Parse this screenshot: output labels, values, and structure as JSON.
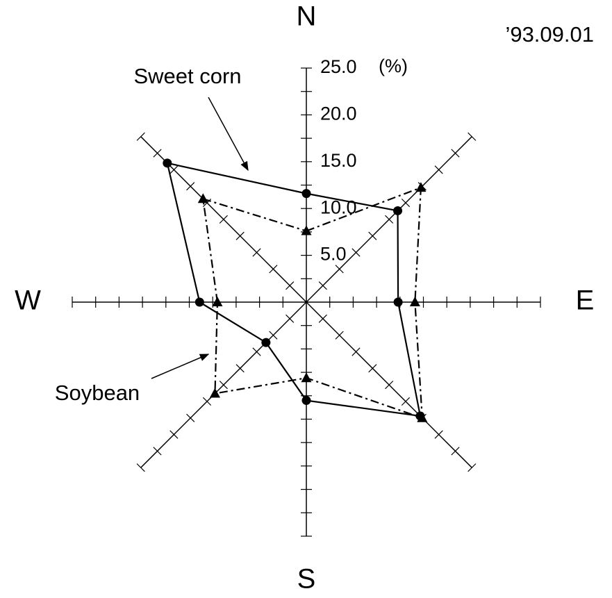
{
  "chart_data": {
    "type": "radar",
    "annotation": "’93.09.01",
    "unit_label": "(%)",
    "categories": [
      "N",
      null,
      "E",
      null,
      "S",
      null,
      "W",
      null
    ],
    "rlim": [
      0,
      25
    ],
    "rticks": [
      {
        "value": 5,
        "label": "5.0"
      },
      {
        "value": 10,
        "label": "10.0"
      },
      {
        "value": 15,
        "label": "15.0"
      },
      {
        "value": 20,
        "label": "20.0"
      },
      {
        "value": 25,
        "label": "25.0"
      }
    ],
    "rminorticks": [
      2.5,
      5,
      7.5,
      10,
      12.5,
      15,
      17.5,
      20,
      22.5,
      25
    ],
    "series": [
      {
        "name": "Sweet corn",
        "color": "#000000",
        "marker": "circle",
        "linestyle": "solid",
        "values": [
          11.6,
          13.8,
          9.8,
          17.2,
          10.5,
          6.1,
          11.4,
          21.0
        ]
      },
      {
        "name": "Soybean",
        "color": "#000000",
        "marker": "triangle",
        "linestyle": "dashdot",
        "values": [
          7.6,
          17.3,
          11.6,
          17.5,
          8.1,
          13.8,
          9.5,
          15.6
        ]
      }
    ]
  }
}
